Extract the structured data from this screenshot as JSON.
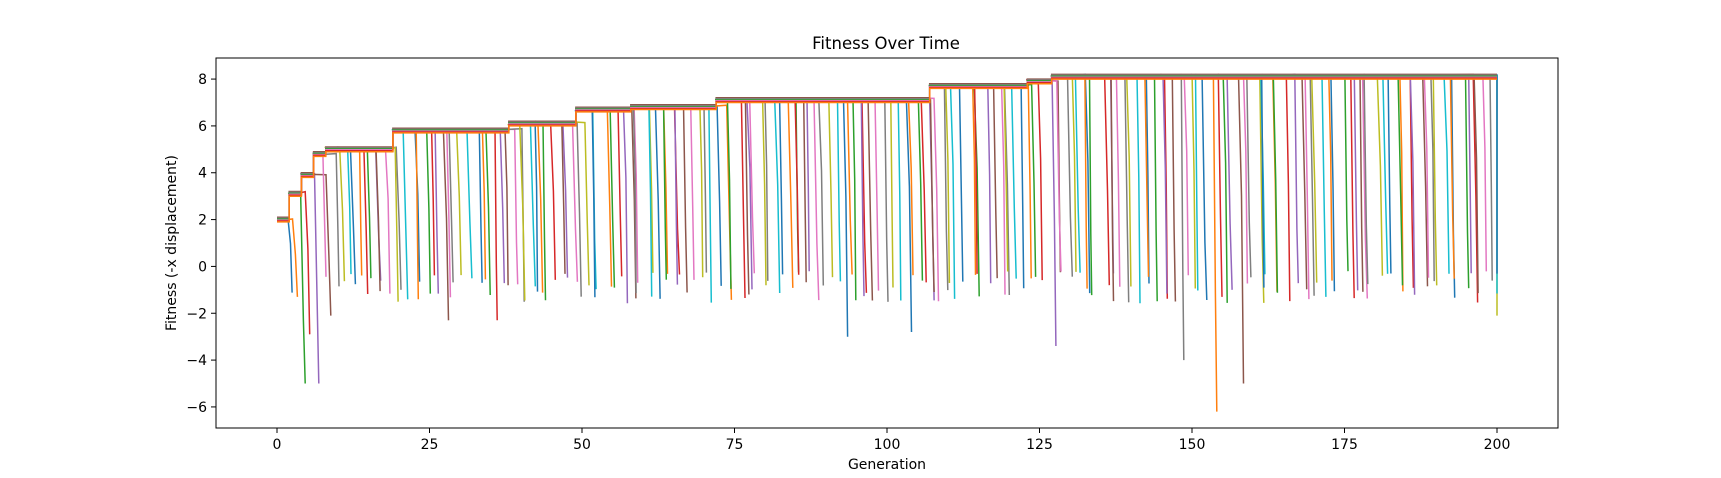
{
  "chart_data": {
    "type": "line",
    "title": "Fitness Over Time",
    "xlabel": "Generation",
    "ylabel": "Fitness (-x displacement)",
    "xlim": [
      -10,
      210
    ],
    "ylim": [
      -6.9,
      8.9
    ],
    "x_ticks": [
      0,
      25,
      50,
      75,
      100,
      125,
      150,
      175,
      200
    ],
    "y_ticks": [
      -6,
      -4,
      -2,
      0,
      2,
      4,
      6,
      8
    ],
    "x_tick_labels": [
      "0",
      "25",
      "50",
      "75",
      "100",
      "125",
      "150",
      "175",
      "200"
    ],
    "y_tick_labels": [
      "−6",
      "−4",
      "−2",
      "0",
      "2",
      "4",
      "6",
      "8"
    ],
    "grid": false,
    "legend": "none",
    "palette": [
      "#1f77b4",
      "#ff7f0e",
      "#2ca02c",
      "#d62728",
      "#9467bd",
      "#8c564b",
      "#e377c2",
      "#7f7f7f",
      "#bcbd22",
      "#17becf"
    ],
    "generations": 201,
    "best_fitness_by_generation": [
      {
        "x": 0,
        "y": 2.1
      },
      {
        "x": 2,
        "y": 3.2
      },
      {
        "x": 4,
        "y": 4.0
      },
      {
        "x": 6,
        "y": 4.9
      },
      {
        "x": 8,
        "y": 5.1
      },
      {
        "x": 19,
        "y": 5.9
      },
      {
        "x": 24,
        "y": 5.9
      },
      {
        "x": 38,
        "y": 6.2
      },
      {
        "x": 49,
        "y": 6.8
      },
      {
        "x": 58,
        "y": 6.9
      },
      {
        "x": 72,
        "y": 7.2
      },
      {
        "x": 107,
        "y": 7.8
      },
      {
        "x": 123,
        "y": 8.0
      },
      {
        "x": 127,
        "y": 8.2
      },
      {
        "x": 200,
        "y": 8.2
      }
    ],
    "min_fitness_samples": [
      {
        "x": 2,
        "y": -5.0
      },
      {
        "x": 4,
        "y": -5.0
      },
      {
        "x": 1,
        "y": -1.3
      },
      {
        "x": 3,
        "y": -2.9
      },
      {
        "x": 5,
        "y": -2.1
      },
      {
        "x": 25,
        "y": -2.3
      },
      {
        "x": 33,
        "y": -2.3
      },
      {
        "x": 90,
        "y": -3.0
      },
      {
        "x": 100,
        "y": -2.8
      },
      {
        "x": 124,
        "y": -3.4
      },
      {
        "x": 147,
        "y": -4.0
      },
      {
        "x": 151,
        "y": -6.2
      },
      {
        "x": 155,
        "y": -5.0
      },
      {
        "x": 198,
        "y": -2.1
      }
    ]
  }
}
